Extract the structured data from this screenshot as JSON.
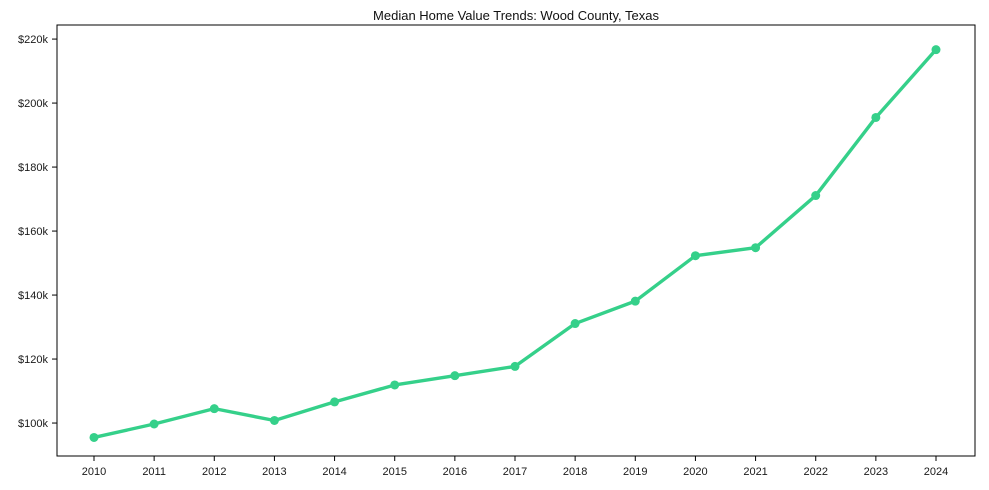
{
  "title": "Median Home Value Trends: Wood County, Texas",
  "colors": {
    "line": "#35d08a",
    "marker": "#35d08a",
    "axis": "#000000",
    "text": "#1a1a1a",
    "background": "#ffffff"
  },
  "chart_data": {
    "type": "line",
    "title": "Median Home Value Trends: Wood County, Texas",
    "xlabel": "",
    "ylabel": "",
    "categories": [
      "2010",
      "2011",
      "2012",
      "2013",
      "2014",
      "2015",
      "2016",
      "2017",
      "2018",
      "2019",
      "2020",
      "2021",
      "2022",
      "2023",
      "2024"
    ],
    "series": [
      {
        "name": "Median Home Value",
        "values": [
          95500,
          99700,
          104500,
          100800,
          106600,
          111900,
          114800,
          117700,
          131100,
          138100,
          152300,
          154800,
          171100,
          195500,
          216700
        ]
      }
    ],
    "ylim": [
      89700,
      224400
    ],
    "yticks": [
      {
        "value": 100000,
        "label": "$100k"
      },
      {
        "value": 120000,
        "label": "$120k"
      },
      {
        "value": 140000,
        "label": "$140k"
      },
      {
        "value": 160000,
        "label": "$160k"
      },
      {
        "value": 180000,
        "label": "$180k"
      },
      {
        "value": 200000,
        "label": "$200k"
      },
      {
        "value": 220000,
        "label": "$220k"
      }
    ],
    "grid": false,
    "legend": false,
    "frame": "box",
    "marker_style": "circle"
  }
}
